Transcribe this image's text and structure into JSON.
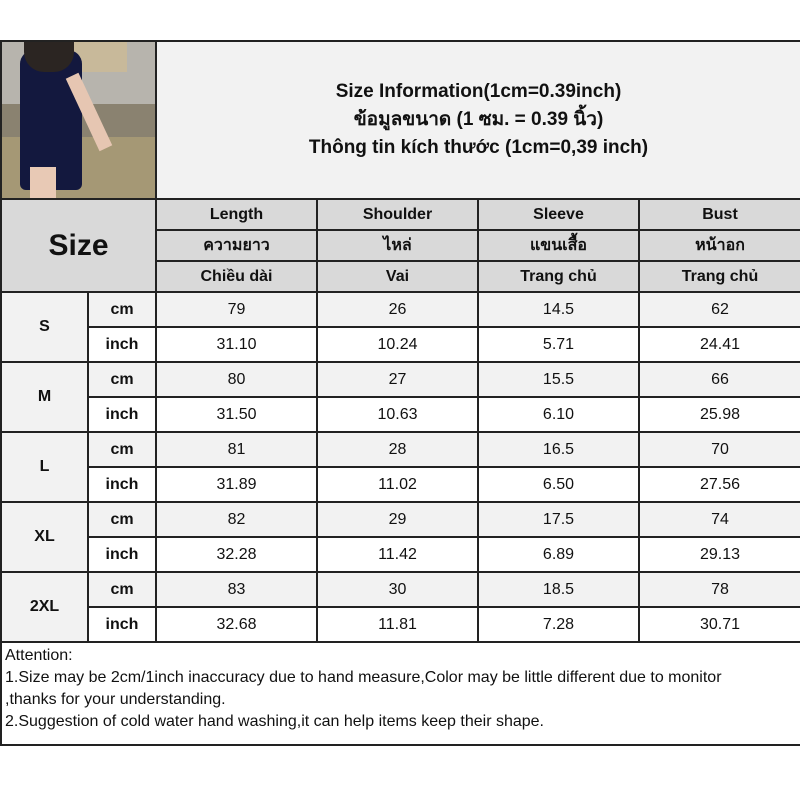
{
  "title": {
    "line1": "Size Information(1cm=0.39inch)",
    "line2": "ข้อมูลขนาด (1 ซม. = 0.39 นิ้ว)",
    "line3": "Thông tin kích thước (1cm=0,39 inch)"
  },
  "size_label": "Size",
  "columns": [
    {
      "en": "Length",
      "th": "ความยาว",
      "vi": "Chiều dài"
    },
    {
      "en": "Shoulder",
      "th": "ไหล่",
      "vi": "Vai"
    },
    {
      "en": "Sleeve",
      "th": "แขนเสื้อ",
      "vi": "Trang chủ"
    },
    {
      "en": "Bust",
      "th": "หน้าอก",
      "vi": "Trang chủ"
    }
  ],
  "units": {
    "cm": "cm",
    "inch": "inch"
  },
  "sizes": [
    {
      "name": "S",
      "cm": [
        "79",
        "26",
        "14.5",
        "62"
      ],
      "inch": [
        "31.10",
        "10.24",
        "5.71",
        "24.41"
      ]
    },
    {
      "name": "M",
      "cm": [
        "80",
        "27",
        "15.5",
        "66"
      ],
      "inch": [
        "31.50",
        "10.63",
        "6.10",
        "25.98"
      ]
    },
    {
      "name": "L",
      "cm": [
        "81",
        "28",
        "16.5",
        "70"
      ],
      "inch": [
        "31.89",
        "11.02",
        "6.50",
        "27.56"
      ]
    },
    {
      "name": "XL",
      "cm": [
        "82",
        "29",
        "17.5",
        "74"
      ],
      "inch": [
        "32.28",
        "11.42",
        "6.89",
        "29.13"
      ]
    },
    {
      "name": "2XL",
      "cm": [
        "83",
        "30",
        "18.5",
        "78"
      ],
      "inch": [
        "32.68",
        "11.81",
        "7.28",
        "30.71"
      ]
    }
  ],
  "attention": {
    "heading": "Attention:",
    "line1": "1.Size may be 2cm/1inch inaccuracy due to hand measure,Color may be little different due to monitor",
    "line1b": ",thanks for your understanding.",
    "line2": "2.Suggestion of cold water hand washing,it can help items keep their shape."
  }
}
